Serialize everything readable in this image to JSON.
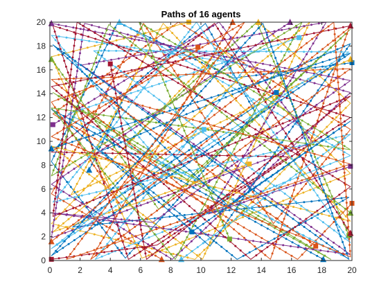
{
  "chart_data": {
    "type": "line",
    "title": "Paths of 16 agents",
    "xlabel": "",
    "ylabel": "",
    "xlim": [
      0,
      20
    ],
    "ylim": [
      0,
      20
    ],
    "x_ticks": [
      "0",
      "2",
      "4",
      "6",
      "8",
      "10",
      "12",
      "14",
      "16",
      "18",
      "20"
    ],
    "y_ticks": [
      "0",
      "2",
      "4",
      "6",
      "8",
      "10",
      "12",
      "14",
      "16",
      "18",
      "20"
    ],
    "grid": false,
    "legend": "none",
    "colors": [
      "#0072BD",
      "#D95319",
      "#EDB120",
      "#7E2F8E",
      "#77AC30",
      "#4DBEEE",
      "#A2142F"
    ],
    "series": [
      {
        "color": "#0072BD",
        "start_marker": "triangle",
        "end_marker": "square",
        "points": [
          [
            2.6,
            7.6
          ],
          [
            5.1,
            14.2
          ],
          [
            10.3,
            19.9
          ],
          [
            13.6,
            12.4
          ],
          [
            5.0,
            0.2
          ],
          [
            0.1,
            8.3
          ],
          [
            4.5,
            20.0
          ],
          [
            12.2,
            15.3
          ],
          [
            20.0,
            16.6
          ]
        ]
      },
      {
        "color": "#D95319",
        "start_marker": "triangle",
        "end_marker": "square",
        "points": [
          [
            7.4,
            0.1
          ],
          [
            0.1,
            5.6
          ],
          [
            6.2,
            19.9
          ],
          [
            14.8,
            3.1
          ],
          [
            19.9,
            11.0
          ],
          [
            8.5,
            20.0
          ],
          [
            0.2,
            12.3
          ],
          [
            16.4,
            0.1
          ],
          [
            20.0,
            4.8
          ]
        ]
      },
      {
        "color": "#EDB120",
        "start_marker": "triangle",
        "end_marker": "square",
        "points": [
          [
            13.8,
            20.0
          ],
          [
            19.9,
            13.2
          ],
          [
            9.6,
            0.1
          ],
          [
            0.1,
            3.1
          ],
          [
            11.3,
            17.8
          ],
          [
            19.9,
            7.3
          ],
          [
            6.1,
            0.2
          ],
          [
            0.1,
            17.1
          ],
          [
            9.2,
            20.0
          ]
        ]
      },
      {
        "color": "#7E2F8E",
        "start_marker": "triangle",
        "end_marker": "square",
        "points": [
          [
            15.9,
            20.0
          ],
          [
            0.1,
            6.4
          ],
          [
            8.1,
            0.1
          ],
          [
            19.9,
            14.1
          ],
          [
            2.3,
            19.9
          ],
          [
            0.1,
            1.9
          ],
          [
            17.4,
            9.9
          ],
          [
            11.2,
            20.0
          ],
          [
            0.2,
            11.4
          ]
        ]
      },
      {
        "color": "#77AC30",
        "start_marker": "triangle",
        "end_marker": "square",
        "points": [
          [
            0.1,
            16.9
          ],
          [
            7.2,
            4.3
          ],
          [
            19.9,
            19.4
          ],
          [
            9.1,
            6.8
          ],
          [
            0.2,
            14.1
          ],
          [
            18.6,
            0.1
          ],
          [
            5.0,
            9.7
          ],
          [
            13.7,
            20.0
          ],
          [
            19.8,
            2.1
          ]
        ]
      },
      {
        "color": "#4DBEEE",
        "start_marker": "triangle",
        "end_marker": "square",
        "points": [
          [
            4.6,
            20.0
          ],
          [
            19.9,
            8.8
          ],
          [
            3.0,
            0.1
          ],
          [
            13.1,
            16.4
          ],
          [
            0.1,
            18.9
          ],
          [
            7.3,
            8.3
          ],
          [
            19.7,
            0.2
          ],
          [
            1.2,
            12.3
          ],
          [
            16.5,
            18.7
          ]
        ]
      },
      {
        "color": "#A2142F",
        "start_marker": "triangle",
        "end_marker": "square",
        "points": [
          [
            19.9,
            2.3
          ],
          [
            10.9,
            19.9
          ],
          [
            0.1,
            9.1
          ],
          [
            15.8,
            8.7
          ],
          [
            5.2,
            0.1
          ],
          [
            0.2,
            19.7
          ],
          [
            19.9,
            12.0
          ],
          [
            7.1,
            1.3
          ],
          [
            0.1,
            0.1
          ]
        ]
      },
      {
        "color": "#0072BD",
        "start_marker": "triangle",
        "end_marker": "square",
        "points": [
          [
            18.1,
            0.1
          ],
          [
            0.1,
            12.7
          ],
          [
            10.6,
            1.2
          ],
          [
            19.9,
            18.2
          ],
          [
            3.4,
            9.2
          ],
          [
            12.4,
            0.1
          ],
          [
            19.8,
            5.3
          ],
          [
            1.5,
            2.8
          ],
          [
            15.0,
            14.1
          ]
        ]
      },
      {
        "color": "#D95319",
        "start_marker": "triangle",
        "end_marker": "square",
        "points": [
          [
            12.1,
            20.0
          ],
          [
            2.7,
            0.1
          ],
          [
            19.9,
            16.1
          ],
          [
            0.1,
            15.2
          ],
          [
            14.6,
            0.1
          ],
          [
            19.8,
            19.5
          ],
          [
            4.8,
            4.4
          ],
          [
            0.1,
            13.3
          ],
          [
            9.8,
            17.9
          ]
        ]
      },
      {
        "color": "#EDB120",
        "start_marker": "triangle",
        "end_marker": "square",
        "points": [
          [
            19.9,
            16.9
          ],
          [
            1.4,
            5.5
          ],
          [
            7.5,
            19.9
          ],
          [
            19.9,
            3.3
          ],
          [
            0.1,
            9.6
          ],
          [
            10.1,
            0.1
          ],
          [
            17.2,
            20.0
          ],
          [
            0.2,
            2.4
          ],
          [
            13.2,
            8.1
          ]
        ]
      },
      {
        "color": "#7E2F8E",
        "start_marker": "triangle",
        "end_marker": "square",
        "points": [
          [
            0.1,
            19.9
          ],
          [
            19.9,
            15.1
          ],
          [
            6.8,
            3.2
          ],
          [
            0.1,
            4.0
          ],
          [
            19.9,
            0.5
          ],
          [
            2.1,
            16.4
          ],
          [
            18.3,
            20.0
          ],
          [
            10.5,
            3.9
          ],
          [
            19.9,
            7.9
          ]
        ]
      },
      {
        "color": "#77AC30",
        "start_marker": "triangle",
        "end_marker": "square",
        "points": [
          [
            19.9,
            4.0
          ],
          [
            3.9,
            19.8
          ],
          [
            0.1,
            7.1
          ],
          [
            16.7,
            20.0
          ],
          [
            8.3,
            0.1
          ],
          [
            0.1,
            12.8
          ],
          [
            19.9,
            9.3
          ],
          [
            5.9,
            20.0
          ],
          [
            11.9,
            1.8
          ]
        ]
      },
      {
        "color": "#4DBEEE",
        "start_marker": "triangle",
        "end_marker": "square",
        "points": [
          [
            8.7,
            0.1
          ],
          [
            19.9,
            10.6
          ],
          [
            0.2,
            4.9
          ],
          [
            9.7,
            20.0
          ],
          [
            19.9,
            1.5
          ],
          [
            2.9,
            17.6
          ],
          [
            19.8,
            17.5
          ],
          [
            0.1,
            1.0
          ],
          [
            10.2,
            11.0
          ]
        ]
      },
      {
        "color": "#A2142F",
        "start_marker": "triangle",
        "end_marker": "square",
        "points": [
          [
            19.9,
            19.7
          ],
          [
            0.1,
            14.6
          ],
          [
            13.3,
            0.1
          ],
          [
            19.9,
            6.2
          ],
          [
            1.8,
            20.0
          ],
          [
            0.2,
            3.7
          ],
          [
            19.9,
            13.8
          ],
          [
            6.4,
            0.1
          ],
          [
            4.0,
            16.5
          ]
        ]
      },
      {
        "color": "#0072BD",
        "start_marker": "triangle",
        "end_marker": "square",
        "points": [
          [
            0.1,
            9.4
          ],
          [
            19.9,
            17.4
          ],
          [
            0.1,
            0.4
          ],
          [
            14.1,
            19.9
          ],
          [
            19.8,
            0.1
          ],
          [
            0.2,
            18.1
          ],
          [
            11.8,
            4.6
          ],
          [
            19.9,
            11.7
          ],
          [
            9.4,
            2.4
          ]
        ]
      },
      {
        "color": "#D95319",
        "start_marker": "triangle",
        "end_marker": "square",
        "points": [
          [
            0.1,
            1.6
          ],
          [
            18.8,
            20.0
          ],
          [
            19.9,
            0.3
          ],
          [
            0.1,
            10.4
          ],
          [
            12.9,
            20.0
          ],
          [
            1.1,
            0.1
          ],
          [
            19.9,
            8.1
          ],
          [
            3.3,
            14.0
          ],
          [
            17.6,
            1.2
          ]
        ]
      }
    ]
  }
}
